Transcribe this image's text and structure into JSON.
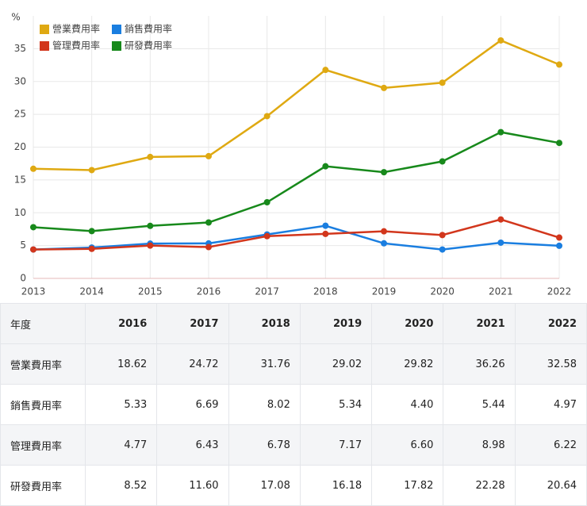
{
  "chart_data": {
    "type": "line",
    "ylabel": "%",
    "x": [
      2013,
      2014,
      2015,
      2016,
      2017,
      2018,
      2019,
      2020,
      2021,
      2022
    ],
    "xlim": [
      2013,
      2022
    ],
    "xticks": [
      2013,
      2014,
      2015,
      2016,
      2017,
      2018,
      2019,
      2020,
      2021,
      2022
    ],
    "ylim": [
      0,
      40
    ],
    "yticks": [
      0,
      5,
      10,
      15,
      20,
      25,
      30,
      35
    ],
    "grid": true,
    "legend": "top-left",
    "series": [
      {
        "name": "營業費用率",
        "color": "#dfa912",
        "values": [
          16.7,
          16.5,
          18.5,
          18.62,
          24.72,
          31.76,
          29.02,
          29.82,
          36.26,
          32.58
        ]
      },
      {
        "name": "銷售費用率",
        "color": "#1a7ee0",
        "values": [
          4.4,
          4.7,
          5.3,
          5.33,
          6.69,
          8.02,
          5.34,
          4.4,
          5.44,
          4.97
        ]
      },
      {
        "name": "管理費用率",
        "color": "#d2361c",
        "values": [
          4.4,
          4.5,
          5.0,
          4.77,
          6.43,
          6.78,
          7.17,
          6.6,
          8.98,
          6.22
        ]
      },
      {
        "name": "研發費用率",
        "color": "#17891b",
        "values": [
          7.8,
          7.2,
          8.0,
          8.52,
          11.6,
          17.08,
          16.18,
          17.82,
          22.28,
          20.64
        ]
      }
    ]
  },
  "table": {
    "header": [
      "年度",
      "2016",
      "2017",
      "2018",
      "2019",
      "2020",
      "2021",
      "2022"
    ],
    "rows": [
      [
        "營業費用率",
        "18.62",
        "24.72",
        "31.76",
        "29.02",
        "29.82",
        "36.26",
        "32.58"
      ],
      [
        "銷售費用率",
        "5.33",
        "6.69",
        "8.02",
        "5.34",
        "4.40",
        "5.44",
        "4.97"
      ],
      [
        "管理費用率",
        "4.77",
        "6.43",
        "6.78",
        "7.17",
        "6.60",
        "8.98",
        "6.22"
      ],
      [
        "研發費用率",
        "8.52",
        "11.60",
        "17.08",
        "16.18",
        "17.82",
        "22.28",
        "20.64"
      ]
    ]
  }
}
